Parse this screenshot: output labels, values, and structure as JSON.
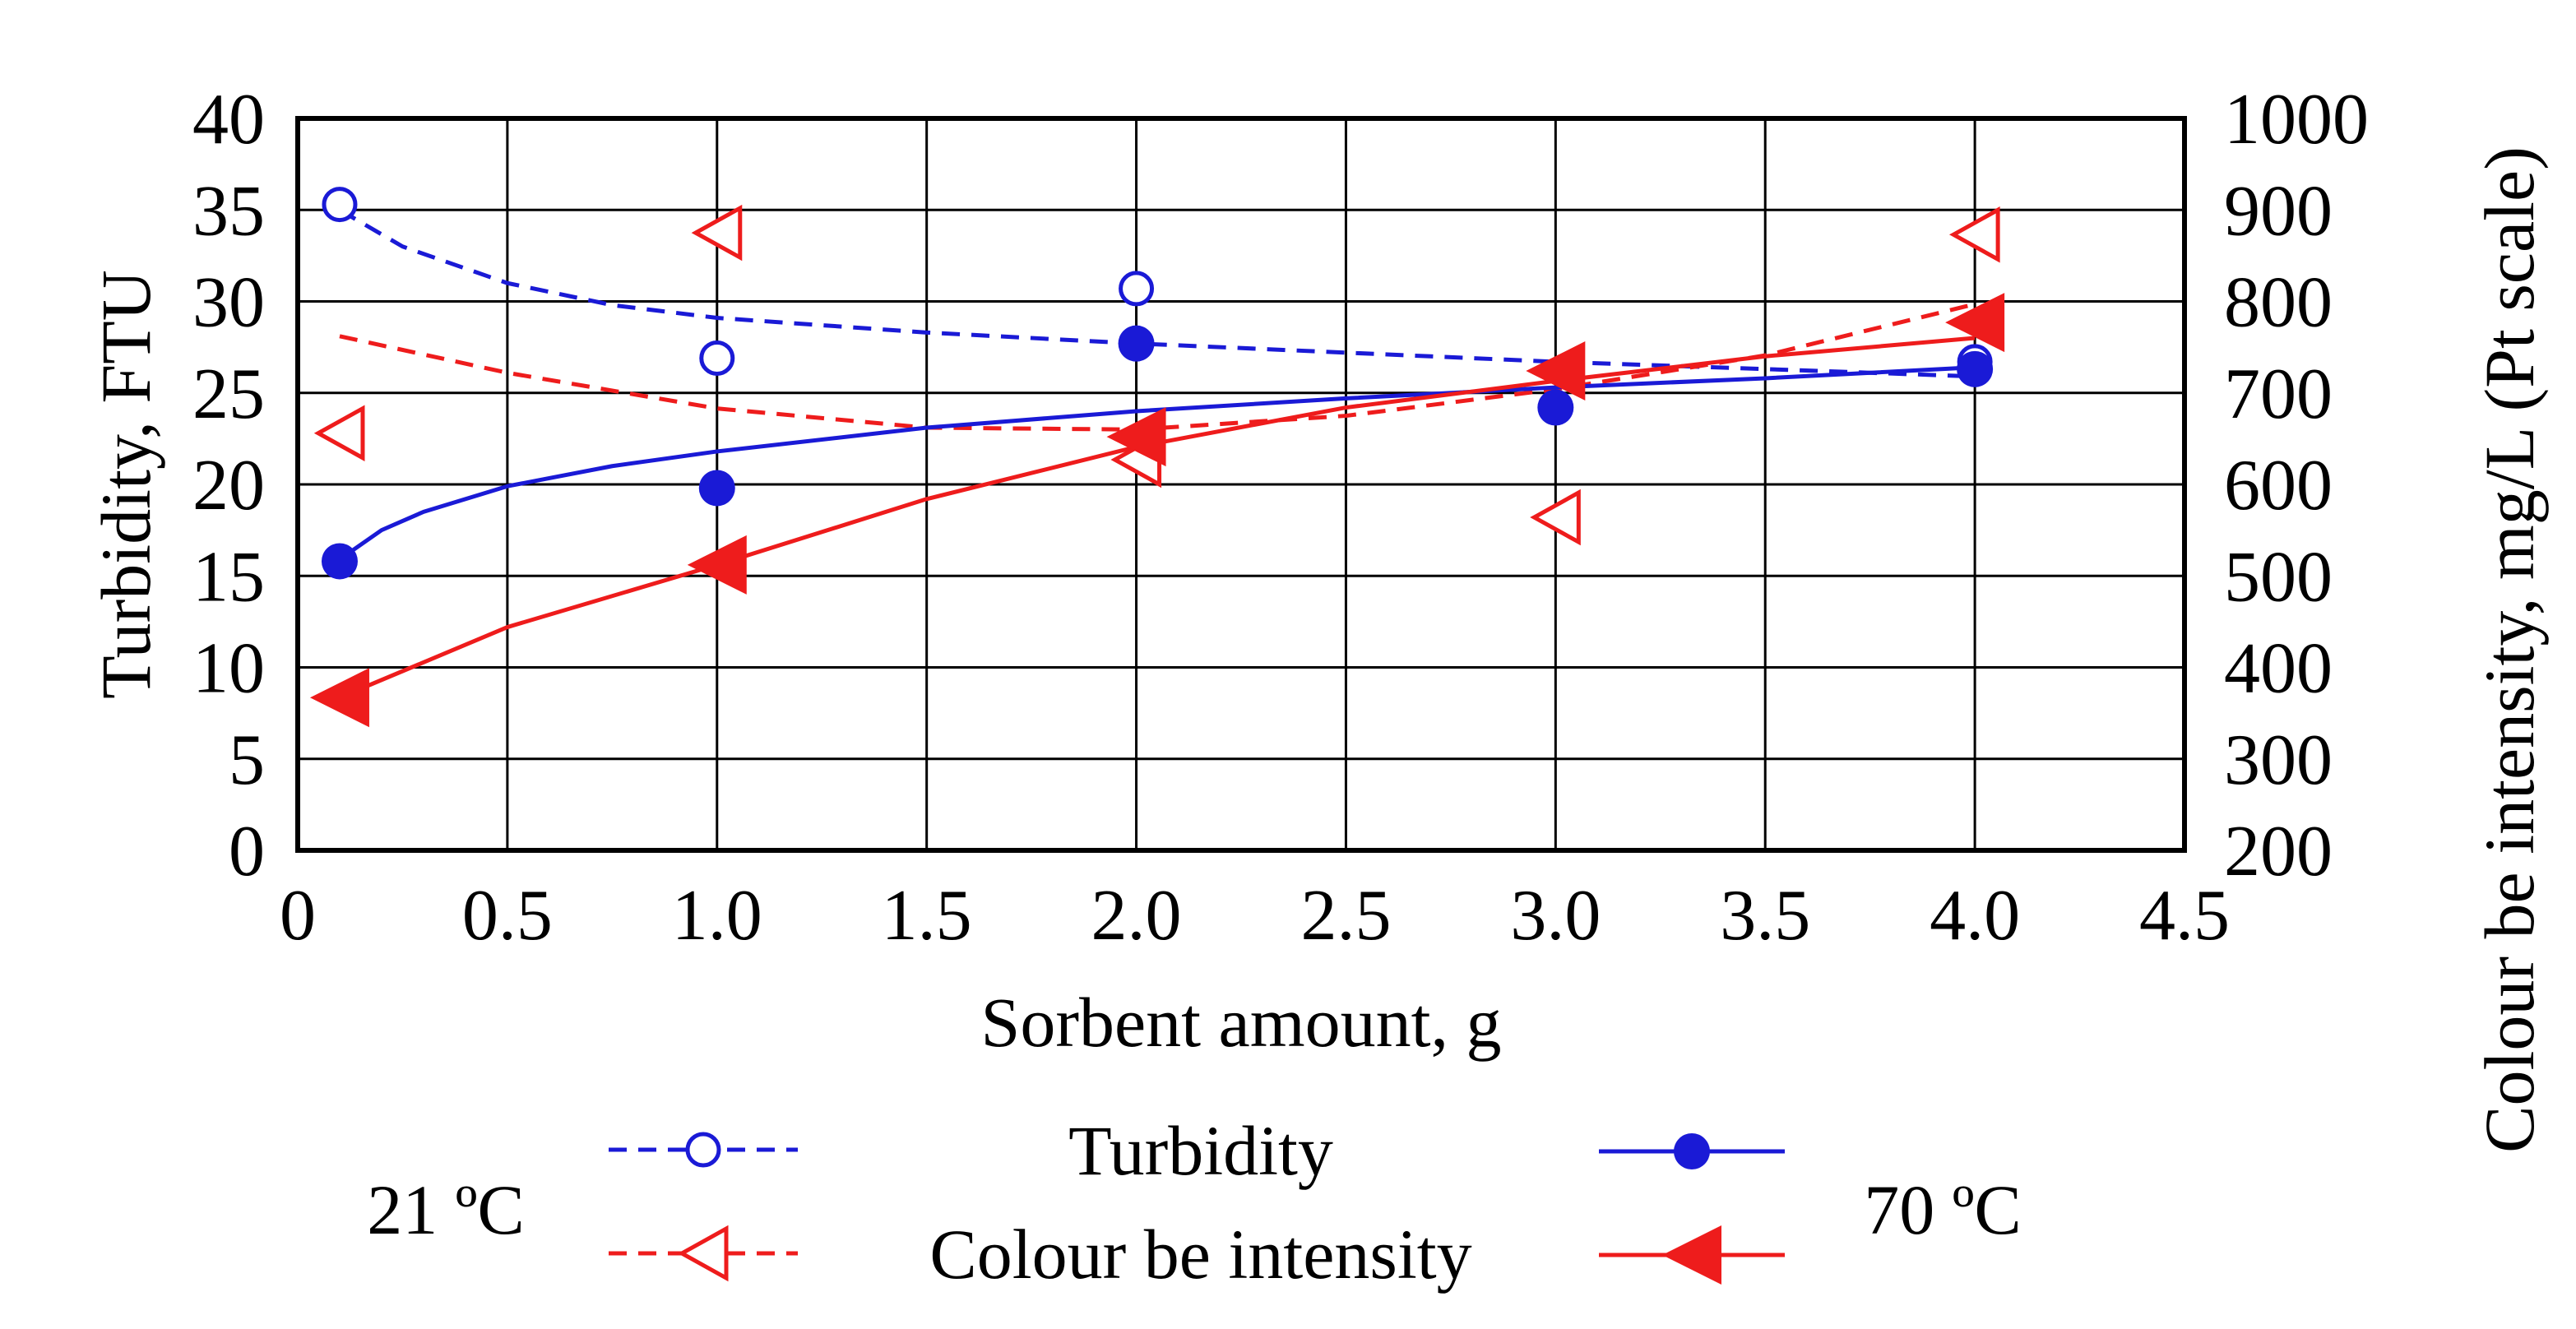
{
  "chart_data": {
    "type": "scatter",
    "xlabel": "Sorbent amount, g",
    "ylabel_left": "Turbidity, FTU",
    "ylabel_right": "Colour be intensity, mg/L (Pt scale)",
    "xlim": [
      0,
      4.5
    ],
    "ylim_left": [
      0,
      40
    ],
    "ylim_right": [
      200,
      1000
    ],
    "x_ticks": [
      "0",
      "0.5",
      "1.0",
      "1.5",
      "2.0",
      "2.5",
      "3.0",
      "3.5",
      "4.0",
      "4.5"
    ],
    "y_ticks_left": [
      "0",
      "5",
      "10",
      "15",
      "20",
      "25",
      "30",
      "35",
      "40"
    ],
    "y_ticks_right": [
      "200",
      "300",
      "400",
      "500",
      "600",
      "700",
      "800",
      "900",
      "1000"
    ],
    "grid": true,
    "colors": {
      "turbidity": "#1a1ad6",
      "colour": "#ee1c1c"
    },
    "series": [
      {
        "name": "Turbidity 21 oC",
        "axis": "left",
        "marker": "open-circle",
        "line": "dashed",
        "x": [
          0.1,
          1.0,
          2.0,
          4.0
        ],
        "y": [
          35.3,
          26.9,
          30.7,
          26.7
        ],
        "trend_x": [
          0.1,
          0.25,
          0.5,
          0.75,
          1.0,
          1.5,
          2.0,
          2.5,
          3.0,
          3.5,
          4.0
        ],
        "trend_y": [
          35.0,
          33.0,
          31.0,
          29.8,
          29.1,
          28.3,
          27.7,
          27.2,
          26.7,
          26.3,
          25.9
        ]
      },
      {
        "name": "Colour be intensity 21 oC",
        "axis": "right",
        "marker": "open-triangle",
        "line": "dashed",
        "x": [
          0.1,
          1.0,
          2.0,
          3.0,
          4.0
        ],
        "y": [
          656,
          875,
          627,
          564,
          873
        ],
        "trend_x": [
          0.1,
          0.5,
          1.0,
          1.5,
          2.0,
          2.5,
          3.0,
          3.5,
          4.0
        ],
        "trend_y": [
          762,
          722,
          683,
          662,
          660,
          675,
          704,
          741,
          797
        ]
      },
      {
        "name": "Turbidity 70 oC",
        "axis": "left",
        "marker": "filled-circle",
        "line": "solid",
        "x": [
          0.1,
          1.0,
          2.0,
          3.0,
          4.0
        ],
        "y": [
          15.8,
          19.8,
          27.7,
          24.2,
          26.3
        ],
        "trend_x": [
          0.1,
          0.2,
          0.3,
          0.5,
          0.75,
          1.0,
          1.5,
          2.0,
          2.5,
          3.0,
          3.5,
          4.0
        ],
        "trend_y": [
          15.9,
          17.5,
          18.5,
          19.9,
          21.0,
          21.8,
          23.1,
          24.0,
          24.7,
          25.3,
          25.8,
          26.4
        ]
      },
      {
        "name": "Colour be intensity 70 oC",
        "axis": "right",
        "marker": "filled-triangle",
        "line": "solid",
        "x": [
          0.1,
          1.0,
          2.0,
          3.0,
          4.0
        ],
        "y": [
          367,
          512,
          652,
          724,
          777
        ],
        "trend_x": [
          0.1,
          0.5,
          1.0,
          1.5,
          2.0,
          2.5,
          3.0,
          3.5,
          4.0
        ],
        "trend_y": [
          367,
          444,
          512,
          584,
          641,
          684,
          713,
          740,
          760
        ]
      }
    ],
    "legend": {
      "left_label": "21 ºC",
      "right_label": "70 ºC",
      "turbidity_label": "Turbidity",
      "colour_label": "Colour be intensity"
    }
  }
}
